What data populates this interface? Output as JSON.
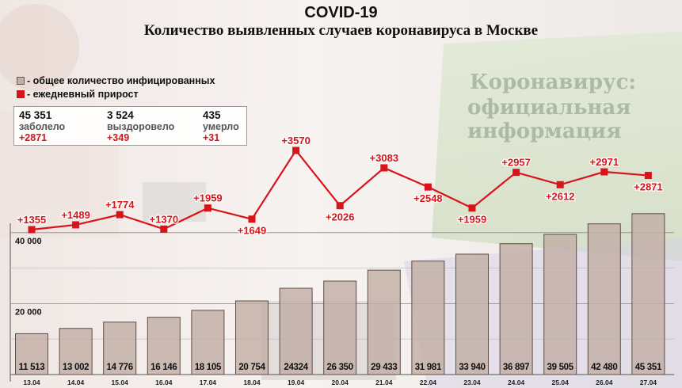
{
  "title": "COVID-19",
  "subtitle": "Количество выявленных случаев коронавируса в  Москве",
  "background_text": {
    "line1": "Коронавирус:",
    "line2": "официальная",
    "line3": "информация"
  },
  "legend": {
    "total": "- общее количество инфицированных",
    "daily": "- ежедневный прирост"
  },
  "stats": {
    "infected": {
      "value": "45 351",
      "label": "заболело",
      "delta": "+2871"
    },
    "recovered": {
      "value": "3 524",
      "label": "выздоровело",
      "delta": "+349"
    },
    "deaths": {
      "value": "435",
      "label": "умерло",
      "delta": "+31"
    }
  },
  "colors": {
    "bar_fill": "#c2aea6",
    "bar_stroke": "#5f4d47",
    "line": "#d8141a",
    "grid": "#8a8a8a"
  },
  "chart_data": {
    "type": "bar",
    "categories": [
      "13.04",
      "14.04",
      "15.04",
      "16.04",
      "17.04",
      "18.04",
      "19.04",
      "20.04",
      "21.04",
      "22.04",
      "23.04",
      "24.04",
      "25.04",
      "26.04",
      "27.04"
    ],
    "ylim": [
      0,
      48000
    ],
    "y_ticks": [
      20000,
      40000
    ],
    "y_tick_labels": [
      "20 000",
      "40 000"
    ],
    "series": [
      {
        "name": "- общее количество инфицированных",
        "type": "bar",
        "values": [
          11513,
          13002,
          14776,
          16146,
          18105,
          20754,
          24324,
          26350,
          29433,
          31981,
          33940,
          36897,
          39505,
          42480,
          45351
        ],
        "labels": [
          "11 513",
          "13 002",
          "14 776",
          "16 146",
          "18 105",
          "20 754",
          "24324",
          "26 350",
          "29 433",
          "31 981",
          "33 940",
          "36 897",
          "39 505",
          "42 480",
          "45 351"
        ]
      },
      {
        "name": "- ежедневный прирост",
        "type": "line",
        "values": [
          1355,
          1489,
          1774,
          1370,
          1959,
          1649,
          3570,
          2026,
          3083,
          2548,
          1959,
          2957,
          2612,
          2971,
          2871
        ],
        "labels": [
          "+1355",
          "+1489",
          "+1774",
          "+1370",
          "+1959",
          "+1649",
          "+3570",
          "+2026",
          "+3083",
          "+2548",
          "+1959",
          "+2957",
          "+2612",
          "+2971",
          "+2871"
        ],
        "label_positions": [
          "above",
          "above",
          "above",
          "above",
          "above",
          "below",
          "above",
          "below",
          "above",
          "below",
          "below",
          "above",
          "below",
          "above",
          "below"
        ]
      }
    ]
  }
}
